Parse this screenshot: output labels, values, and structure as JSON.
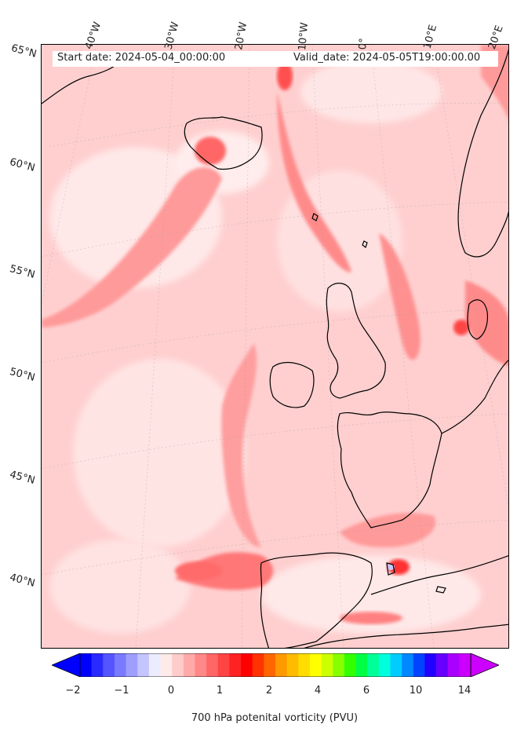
{
  "title": {
    "start_date": "Start date: 2024-05-04_00:00:00",
    "valid_date": "Valid_date: 2024-05-05T19:00:00.00"
  },
  "longitude_labels": [
    "40°W",
    "30°W",
    "20°W",
    "10°W",
    "0°",
    "10°E",
    "20°E"
  ],
  "latitude_labels": [
    "65°N",
    "60°N",
    "55°N",
    "50°N",
    "45°N",
    "40°N"
  ],
  "colorbar": {
    "label": "700 hPa potenital vorticity (PVU)",
    "tick_labels": [
      "−2",
      "−1",
      "0",
      "1",
      "2",
      "4",
      "6",
      "10",
      "14"
    ],
    "colors": [
      "#0000ff",
      "#2a2aff",
      "#5555ff",
      "#7a7aff",
      "#9e9eff",
      "#c4c4ff",
      "#ececff",
      "#ffeaea",
      "#ffcccc",
      "#ffaaaa",
      "#ff8888",
      "#ff6666",
      "#ff4444",
      "#ff2222",
      "#ff0000",
      "#ff3300",
      "#ff6600",
      "#ff9900",
      "#ffbb00",
      "#ffdd00",
      "#ffff00",
      "#ccff00",
      "#88ff00",
      "#33ff00",
      "#00ff44",
      "#00ff99",
      "#00ffdd",
      "#00ccff",
      "#0088ff",
      "#0044ff",
      "#2200ff",
      "#6600ff",
      "#aa00ff",
      "#cc00ff"
    ],
    "under_color": "#0000ff",
    "over_color": "#cc00ff"
  },
  "map": {
    "background_color": "#ffd6d6",
    "coastline_color": "#000000"
  }
}
